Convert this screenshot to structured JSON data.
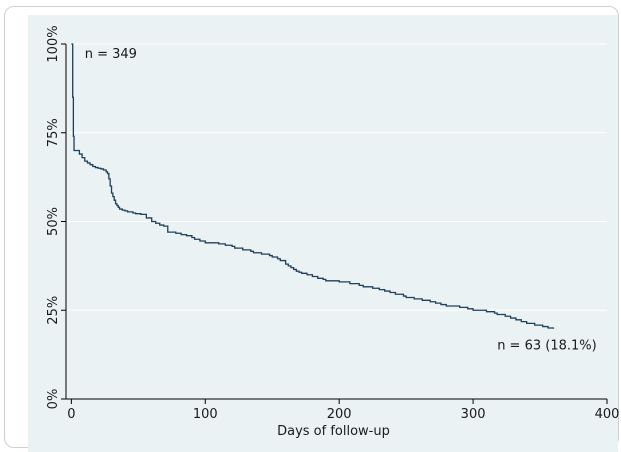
{
  "chart_data": {
    "type": "line",
    "step": true,
    "xlabel": "Days of follow-up",
    "ylabel": "",
    "xlim": [
      -4,
      400
    ],
    "ylim": [
      0,
      100
    ],
    "x_ticks": [
      0,
      100,
      200,
      300,
      400
    ],
    "y_ticks": [
      0,
      25,
      50,
      75,
      100
    ],
    "y_tick_labels": [
      "0%",
      "25%",
      "50%",
      "75%",
      "100%"
    ],
    "grid": true,
    "colors": {
      "panel": "#eaf2f3",
      "line": "#1f3f5a",
      "grid": "#ffffff"
    },
    "series": [
      {
        "x": [
          0,
          1,
          1.5,
          2,
          6,
          8,
          10,
          12,
          14,
          16,
          18,
          20,
          22,
          24,
          26,
          27,
          28,
          29,
          30,
          31,
          32,
          33,
          34,
          35,
          36,
          38,
          40,
          42,
          46,
          48,
          52,
          56,
          60,
          63,
          66,
          69,
          72,
          78,
          82,
          86,
          90,
          92,
          96,
          100,
          110,
          115,
          120,
          122,
          128,
          134,
          136,
          142,
          148,
          150,
          154,
          156,
          160,
          162,
          164,
          166,
          168,
          170,
          172,
          176,
          180,
          184,
          188,
          190,
          200,
          208,
          215,
          218,
          225,
          230,
          234,
          238,
          242,
          248,
          250,
          256,
          262,
          268,
          272,
          276,
          280,
          290,
          296,
          300,
          310,
          316,
          318,
          324,
          328,
          332,
          336,
          340,
          346,
          352,
          356,
          360
        ],
        "y": [
          100,
          85,
          74,
          70,
          69,
          68,
          67,
          66.5,
          66,
          65.5,
          65.2,
          65,
          64.8,
          64.5,
          64,
          63.5,
          62,
          60,
          58,
          57,
          56,
          55,
          54.5,
          54,
          53.5,
          53.2,
          53,
          52.7,
          52.4,
          52.2,
          52,
          51,
          50,
          49.5,
          49,
          48.7,
          47,
          46.7,
          46.3,
          46,
          45.5,
          45,
          44.5,
          44,
          43.7,
          43.3,
          43,
          42.5,
          42,
          41.6,
          41.2,
          40.8,
          40.4,
          40,
          39.5,
          39,
          38,
          37.5,
          37,
          36.5,
          36,
          35.7,
          35.4,
          35,
          34.5,
          34,
          33.7,
          33.3,
          33,
          32.5,
          32,
          31.6,
          31.2,
          30.8,
          30.4,
          30,
          29.5,
          29,
          28.6,
          28.2,
          27.8,
          27.4,
          27,
          26.6,
          26.2,
          25.8,
          25.4,
          25,
          24.6,
          24.2,
          23.8,
          23.3,
          22.8,
          22.3,
          21.8,
          21.3,
          20.8,
          20.4,
          20,
          19.8
        ]
      }
    ],
    "annotations": [
      {
        "text": "n = 349",
        "x": 10,
        "y": 96
      },
      {
        "text": "n = 63 (18.1%)",
        "x": 318,
        "y": 14
      }
    ]
  }
}
